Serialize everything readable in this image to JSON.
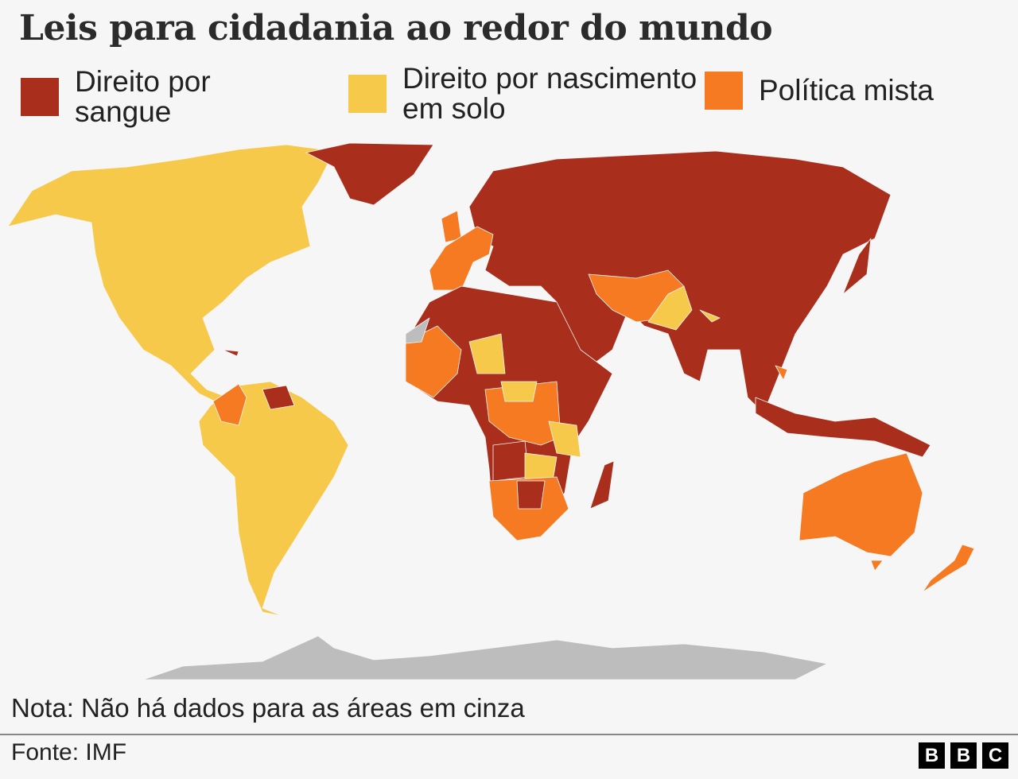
{
  "title": "Leis para cidadania ao redor do mundo",
  "legend": [
    {
      "label": "Direito por sangue",
      "color": "#a92e1c"
    },
    {
      "label": "Direito por nascimento em solo",
      "color": "#f7c94b"
    },
    {
      "label": "Política mista",
      "color": "#f67a22"
    }
  ],
  "no_data_color": "#bdbdbd",
  "note": "Nota: Não há dados para as áreas em cinza",
  "source": "Fonte: IMF",
  "logo": [
    "B",
    "B",
    "C"
  ]
}
